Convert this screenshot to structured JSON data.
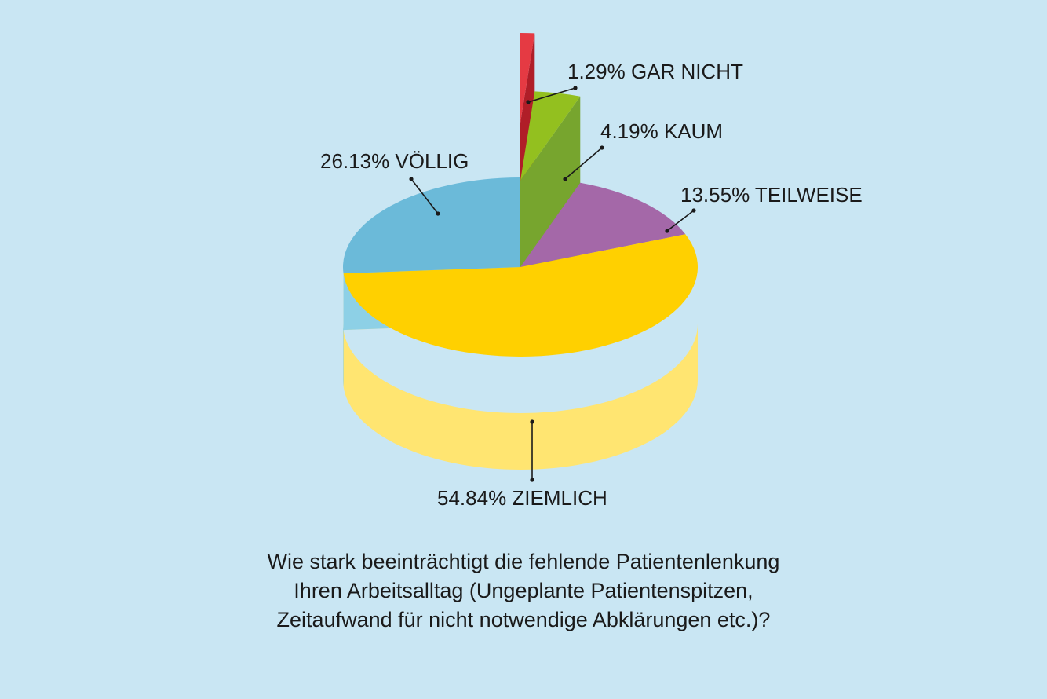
{
  "chart_data": {
    "type": "pie",
    "three_d": true,
    "slices": [
      {
        "label": "GAR NICHT",
        "value": 1.29,
        "display": "1.29% GAR NICHT",
        "top_color": "#e53a43",
        "side_color": "#b01e28",
        "exploded": true
      },
      {
        "label": "KAUM",
        "value": 4.19,
        "display": "4.19% KAUM",
        "top_color": "#93c01f",
        "side_color": "#77a52e",
        "exploded": true
      },
      {
        "label": "TEILWEISE",
        "value": 13.55,
        "display": "13.55% TEILWEISE",
        "top_color": "#a468a8",
        "side_color": "#c293c5",
        "exploded": false
      },
      {
        "label": "ZIEMLICH",
        "value": 54.84,
        "display": "54.84% ZIEMLICH",
        "top_color": "#ffd000",
        "side_color": "#ffe571",
        "exploded": false
      },
      {
        "label": "VÖLLIG",
        "value": 26.13,
        "display": "26.13% VÖLLIG",
        "top_color": "#6bbad9",
        "side_color": "#8dd0e6",
        "exploded": false
      }
    ],
    "caption_lines": [
      "Wie stark beeinträchtigt die fehlende Patientenlenkung",
      "Ihren Arbeitsalltag (Ungeplante Patientenspitzen,",
      "Zeitaufwand für nicht notwendige Abklärungen etc.)?"
    ],
    "legend": "none",
    "grid": false
  }
}
